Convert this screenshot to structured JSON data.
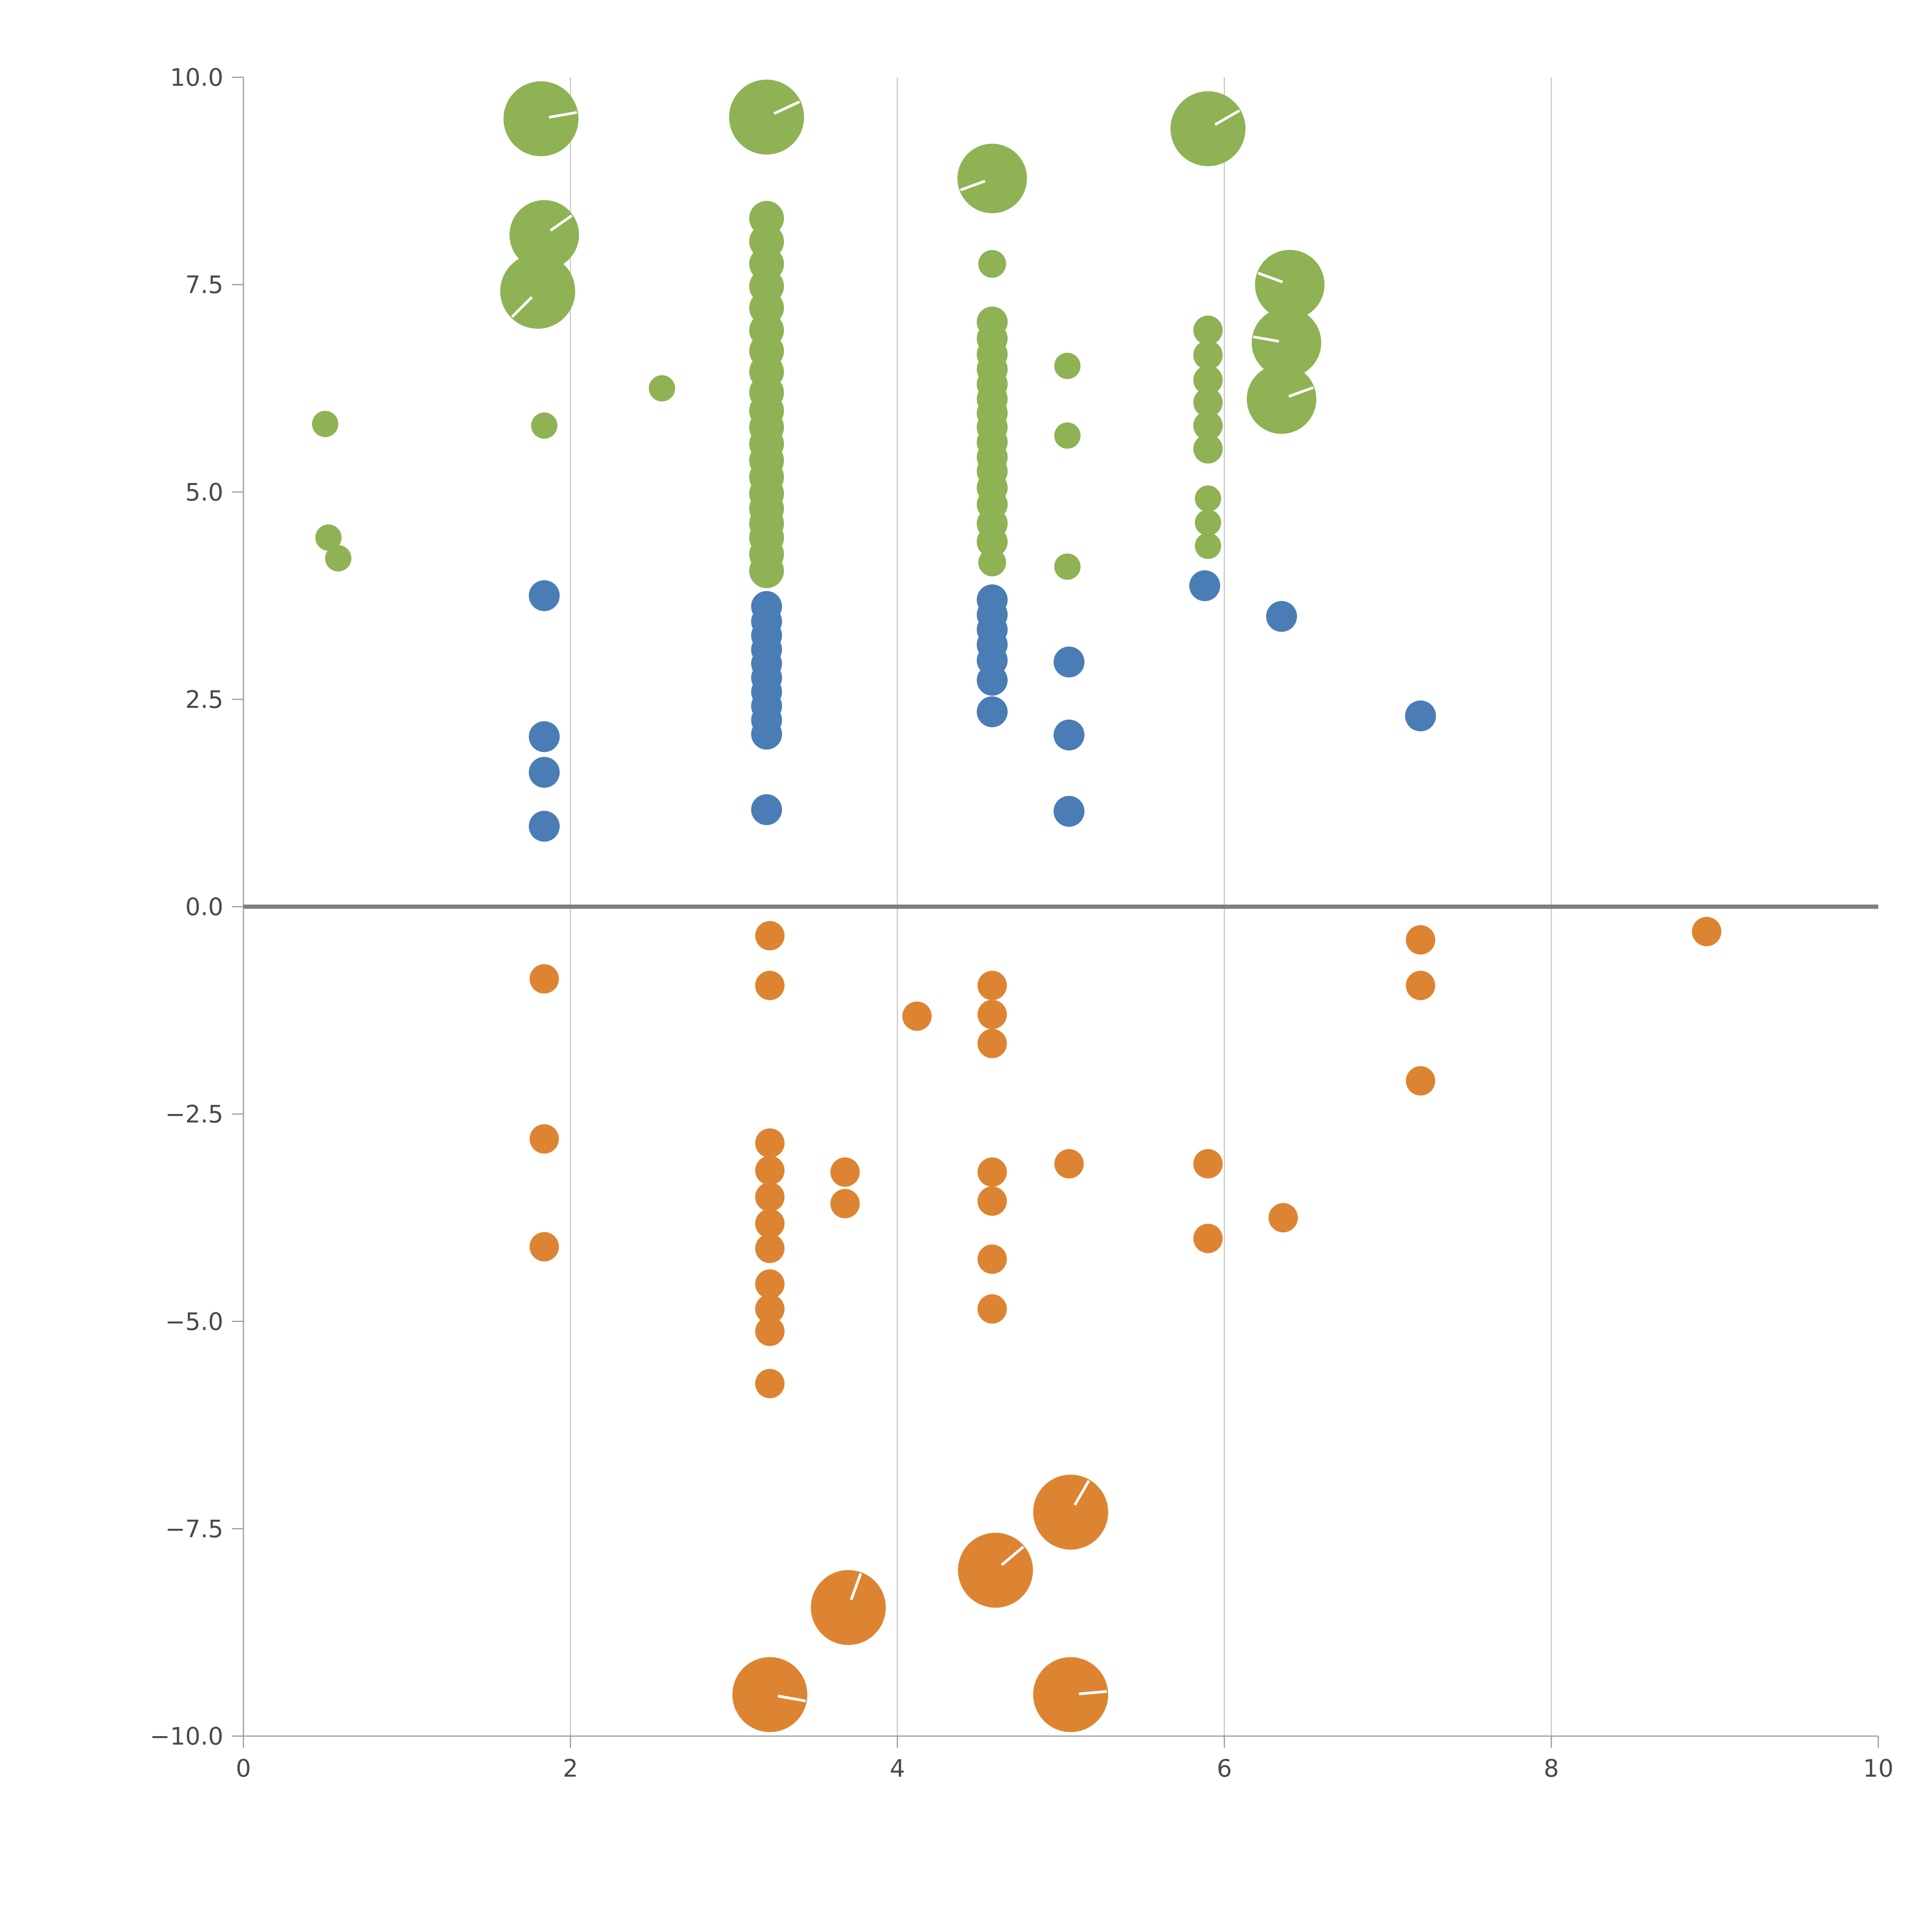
{
  "chart_data": {
    "type": "scatter",
    "title": "",
    "xlabel": "",
    "ylabel": "",
    "xlim": [
      0,
      10
    ],
    "ylim": [
      -10,
      10
    ],
    "x_ticks": [
      {
        "v": 0,
        "label": "0"
      },
      {
        "v": 2,
        "label": "2"
      },
      {
        "v": 4,
        "label": "4"
      },
      {
        "v": 6,
        "label": "6"
      },
      {
        "v": 8,
        "label": "8"
      },
      {
        "v": 10,
        "label": "10"
      }
    ],
    "y_ticks": [
      {
        "v": 10,
        "label": "10.0"
      },
      {
        "v": 7.5,
        "label": "7.5"
      },
      {
        "v": 5,
        "label": "5.0"
      },
      {
        "v": 2.5,
        "label": "2.5"
      },
      {
        "v": 0,
        "label": "0.0"
      },
      {
        "v": -2.5,
        "label": "−2.5"
      },
      {
        "v": -5,
        "label": "−5.0"
      },
      {
        "v": -7.5,
        "label": "−7.5"
      },
      {
        "v": -10,
        "label": "−10.0"
      }
    ],
    "grid": {
      "vertical_at": [
        2,
        4,
        6,
        8
      ],
      "color": "#c9c9c9"
    },
    "zero_line": {
      "y": 0,
      "color": "#7f7f7f"
    },
    "axis_color": "#9b9b9b",
    "tick_label_color": "#4a4a4a",
    "legend": "none",
    "series": [
      {
        "name": "green",
        "color": "#8fb254",
        "points": [
          [
            1.82,
            9.5,
            97,
            10
          ],
          [
            3.2,
            9.52,
            97,
            25
          ],
          [
            5.9,
            9.38,
            97,
            30
          ],
          [
            4.58,
            8.78,
            90,
            200
          ],
          [
            1.84,
            8.1,
            90,
            35
          ],
          [
            1.8,
            7.42,
            97,
            225
          ],
          [
            6.4,
            7.5,
            90,
            160
          ],
          [
            6.38,
            6.8,
            90,
            170
          ],
          [
            6.35,
            6.12,
            90,
            20
          ],
          [
            3.2,
            8.3,
            45
          ],
          [
            3.2,
            8.02,
            45
          ],
          [
            3.2,
            7.75,
            45
          ],
          [
            3.2,
            7.48,
            45
          ],
          [
            3.2,
            7.22,
            45
          ],
          [
            3.2,
            6.95,
            45
          ],
          [
            3.2,
            6.7,
            45
          ],
          [
            3.2,
            6.45,
            45
          ],
          [
            3.2,
            6.2,
            45
          ],
          [
            3.2,
            5.98,
            45
          ],
          [
            3.2,
            5.78,
            45
          ],
          [
            3.2,
            5.58,
            45
          ],
          [
            3.2,
            5.38,
            45
          ],
          [
            3.2,
            5.18,
            45
          ],
          [
            3.2,
            4.98,
            45
          ],
          [
            3.2,
            4.8,
            45
          ],
          [
            3.2,
            4.62,
            45
          ],
          [
            3.2,
            4.45,
            45
          ],
          [
            3.2,
            4.25,
            45
          ],
          [
            3.2,
            4.05,
            45
          ],
          [
            4.58,
            7.05,
            40
          ],
          [
            4.58,
            6.85,
            40
          ],
          [
            4.58,
            6.66,
            40
          ],
          [
            4.58,
            6.48,
            40
          ],
          [
            4.58,
            6.3,
            40
          ],
          [
            4.58,
            6.12,
            40
          ],
          [
            4.58,
            5.95,
            40
          ],
          [
            4.58,
            5.78,
            40
          ],
          [
            4.58,
            5.6,
            40
          ],
          [
            4.58,
            5.42,
            40
          ],
          [
            4.58,
            5.25,
            40
          ],
          [
            4.58,
            5.05,
            40
          ],
          [
            4.58,
            4.85,
            40
          ],
          [
            4.58,
            4.62,
            40
          ],
          [
            4.58,
            4.4,
            40
          ],
          [
            4.58,
            7.75,
            36
          ],
          [
            4.58,
            4.15,
            36
          ],
          [
            5.9,
            6.95,
            38
          ],
          [
            5.9,
            6.65,
            38
          ],
          [
            5.9,
            6.35,
            38
          ],
          [
            5.9,
            6.08,
            38
          ],
          [
            5.9,
            5.8,
            38
          ],
          [
            5.9,
            5.52,
            38
          ],
          [
            5.9,
            4.92,
            34
          ],
          [
            5.9,
            4.63,
            34
          ],
          [
            5.9,
            4.35,
            34
          ],
          [
            0.5,
            5.82,
            34
          ],
          [
            0.52,
            4.45,
            34
          ],
          [
            0.58,
            4.2,
            34
          ],
          [
            1.84,
            5.8,
            34
          ],
          [
            2.56,
            6.25,
            34
          ],
          [
            5.04,
            6.52,
            34
          ],
          [
            5.04,
            5.68,
            34
          ],
          [
            5.04,
            4.1,
            34
          ]
        ]
      },
      {
        "name": "blue",
        "color": "#4a7db5",
        "points": [
          [
            1.84,
            3.75,
            40
          ],
          [
            1.84,
            2.05,
            40
          ],
          [
            1.84,
            1.62,
            40
          ],
          [
            1.84,
            0.97,
            40
          ],
          [
            3.2,
            3.62,
            40
          ],
          [
            3.2,
            3.44,
            40
          ],
          [
            3.2,
            3.27,
            40
          ],
          [
            3.2,
            3.1,
            40
          ],
          [
            3.2,
            2.93,
            40
          ],
          [
            3.2,
            2.76,
            40
          ],
          [
            3.2,
            2.59,
            40
          ],
          [
            3.2,
            2.42,
            40
          ],
          [
            3.2,
            2.25,
            40
          ],
          [
            3.2,
            2.08,
            40
          ],
          [
            3.2,
            1.17,
            40
          ],
          [
            4.58,
            3.7,
            40
          ],
          [
            4.58,
            3.52,
            40
          ],
          [
            4.58,
            3.34,
            40
          ],
          [
            4.58,
            3.16,
            40
          ],
          [
            4.58,
            2.97,
            40
          ],
          [
            4.58,
            2.73,
            40
          ],
          [
            4.58,
            2.35,
            40
          ],
          [
            5.05,
            2.95,
            40
          ],
          [
            5.05,
            2.07,
            40
          ],
          [
            5.05,
            1.15,
            40
          ],
          [
            5.88,
            3.87,
            40
          ],
          [
            6.35,
            3.5,
            40
          ],
          [
            7.2,
            2.3,
            40
          ]
        ]
      },
      {
        "name": "orange",
        "color": "#dd8433",
        "points": [
          [
            1.84,
            -0.87,
            38
          ],
          [
            1.84,
            -2.8,
            38
          ],
          [
            1.84,
            -4.1,
            38
          ],
          [
            3.22,
            -0.35,
            38
          ],
          [
            3.22,
            -0.95,
            38
          ],
          [
            3.22,
            -2.85,
            38
          ],
          [
            3.22,
            -3.18,
            38
          ],
          [
            3.22,
            -3.5,
            38
          ],
          [
            3.22,
            -3.82,
            38
          ],
          [
            3.22,
            -4.12,
            38
          ],
          [
            3.22,
            -4.55,
            38
          ],
          [
            3.22,
            -4.85,
            38
          ],
          [
            3.22,
            -5.12,
            38
          ],
          [
            3.22,
            -5.75,
            38
          ],
          [
            3.68,
            -3.2,
            38
          ],
          [
            3.68,
            -3.58,
            38
          ],
          [
            4.12,
            -1.32,
            38
          ],
          [
            4.58,
            -0.95,
            38
          ],
          [
            4.58,
            -1.3,
            38
          ],
          [
            4.58,
            -1.65,
            38
          ],
          [
            4.58,
            -3.2,
            38
          ],
          [
            4.58,
            -3.55,
            38
          ],
          [
            4.58,
            -4.25,
            38
          ],
          [
            4.58,
            -4.85,
            38
          ],
          [
            5.05,
            -3.1,
            38
          ],
          [
            5.9,
            -3.1,
            38
          ],
          [
            5.9,
            -4.0,
            38
          ],
          [
            6.36,
            -3.75,
            38
          ],
          [
            7.2,
            -0.4,
            38
          ],
          [
            7.2,
            -0.95,
            38
          ],
          [
            7.2,
            -2.1,
            38
          ],
          [
            8.95,
            -0.3,
            38
          ],
          [
            5.06,
            -7.3,
            97,
            60
          ],
          [
            4.6,
            -8.0,
            97,
            40
          ],
          [
            3.7,
            -8.45,
            97,
            70
          ],
          [
            3.22,
            -9.5,
            97,
            -10
          ],
          [
            5.06,
            -9.5,
            97,
            5
          ]
        ]
      }
    ]
  }
}
